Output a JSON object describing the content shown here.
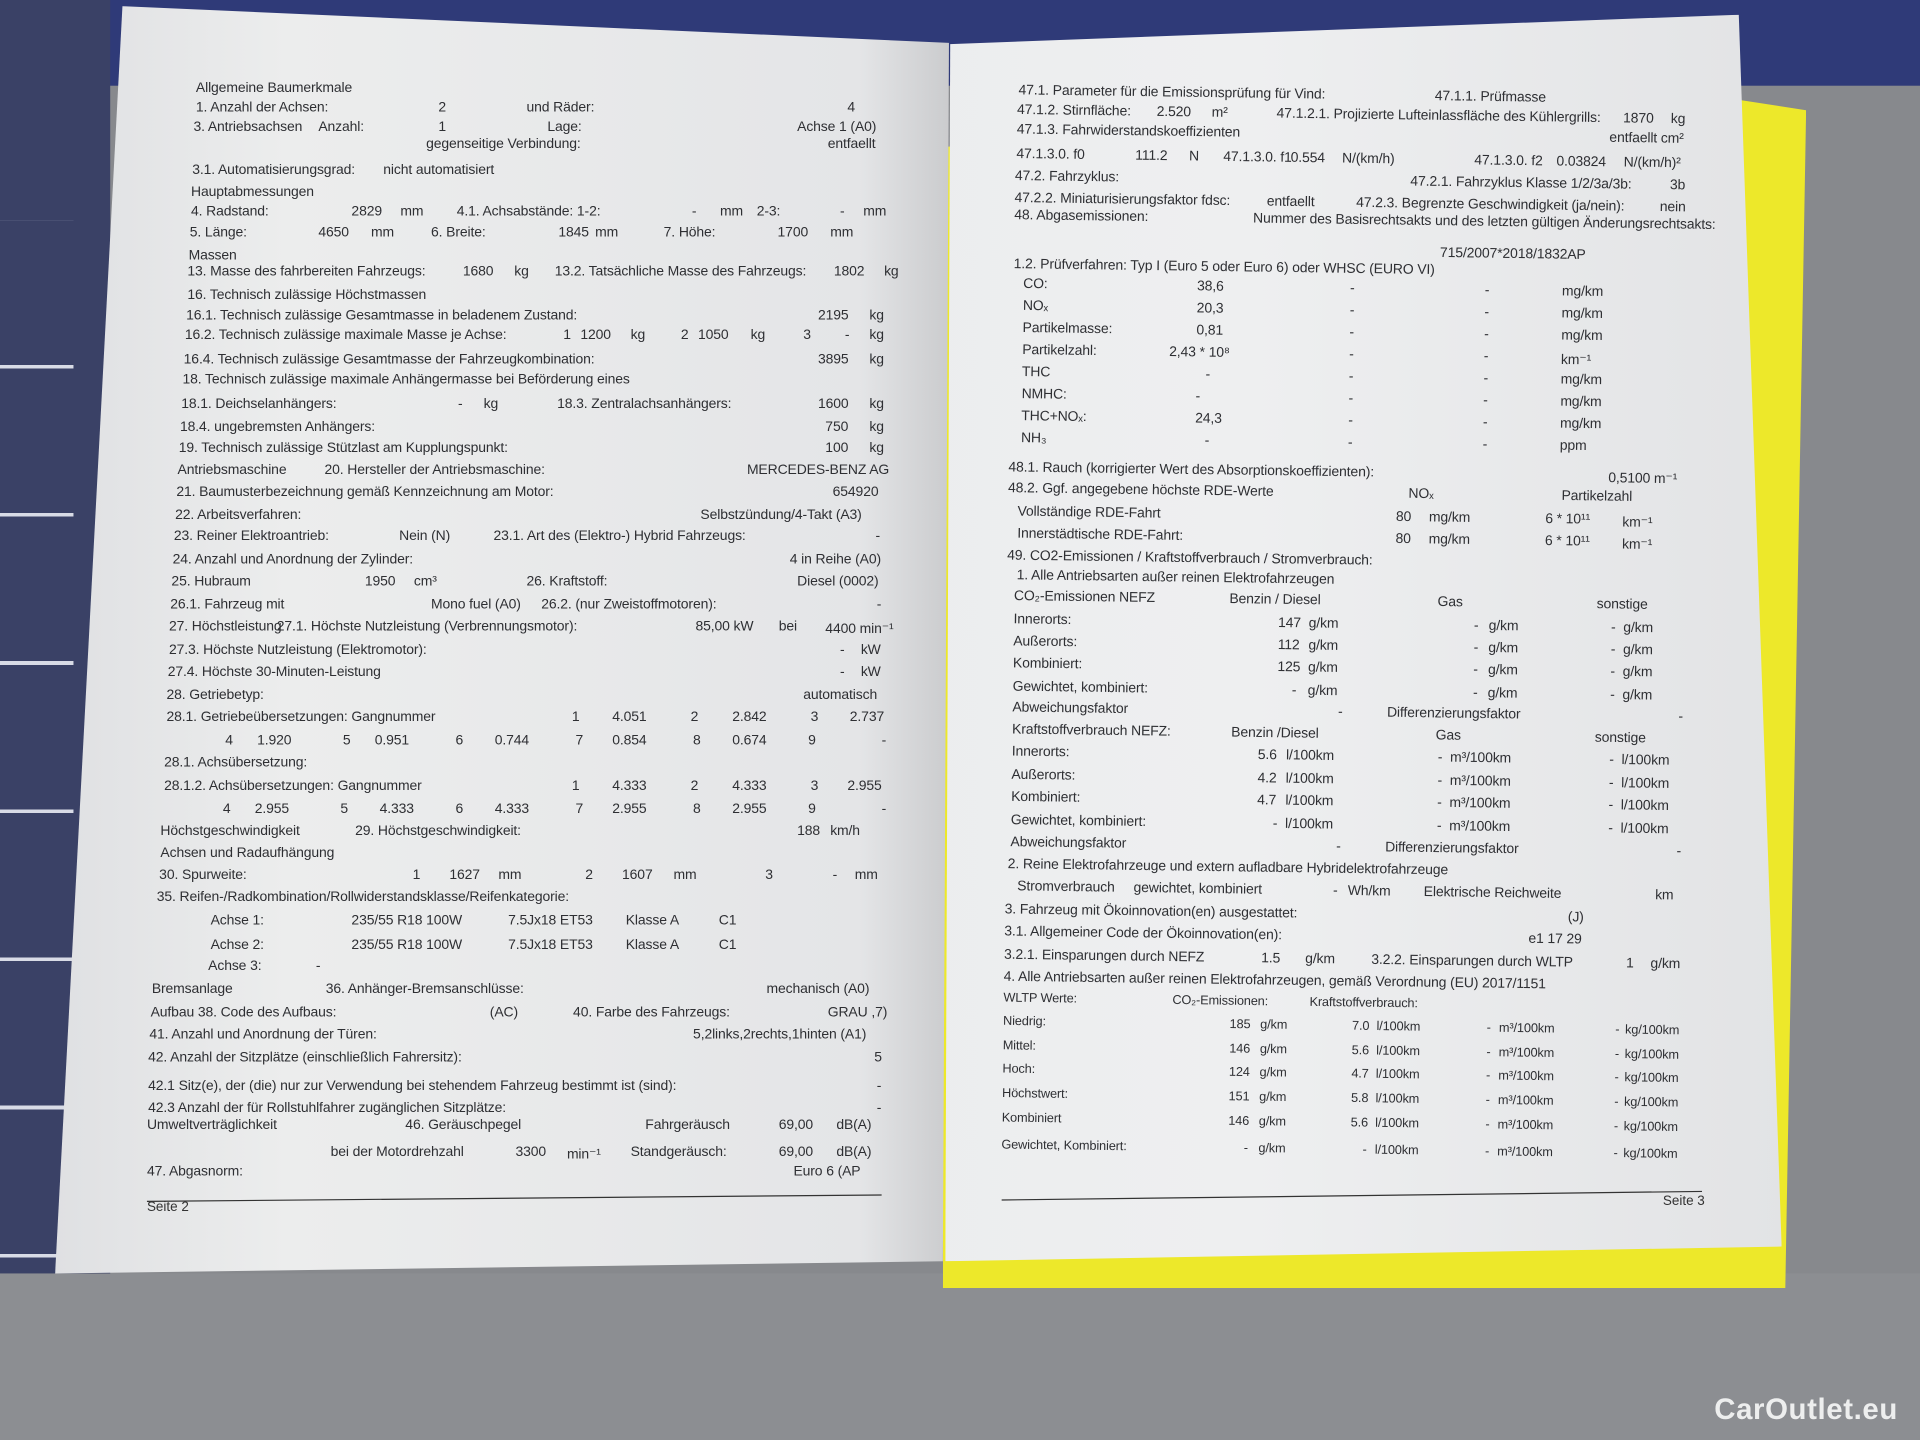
{
  "left_page": {
    "lines": [
      [
        "Allgemeine Baumerkmale"
      ],
      [
        "1. Anzahl der Achsen:",
        "2",
        "und Räder:",
        "4"
      ],
      [
        "3. Antriebsachsen",
        "Anzahl:",
        "1",
        "Lage:",
        "Achse 1 (A0)"
      ],
      [
        "gegenseitige Verbindung:",
        "entfaellt"
      ],
      [
        "3.1. Automatisierungsgrad:",
        "nicht automatisiert"
      ],
      [
        "Hauptabmessungen"
      ],
      [
        "4. Radstand:",
        "2829",
        "mm",
        "4.1. Achsabstände: 1-2:",
        "-",
        "mm",
        "2-3:",
        "-",
        "mm"
      ],
      [
        "5. Länge:",
        "4650",
        "mm",
        "6. Breite:",
        "1845",
        "mm",
        "7. Höhe:",
        "1700",
        "mm"
      ],
      [
        "Massen"
      ],
      [
        "13. Masse des fahrbereiten Fahrzeugs:",
        "1680",
        "kg",
        "13.2. Tatsächliche Masse des Fahrzeugs:",
        "1802",
        "kg"
      ],
      [
        "16. Technisch zulässige Höchstmassen"
      ],
      [
        "16.1. Technisch zulässige Gesamtmasse in beladenem Zustand:",
        "2195",
        "kg"
      ],
      [
        "16.2. Technisch zulässige maximale Masse je Achse:",
        "1",
        "1200",
        "kg",
        "2",
        "1050",
        "kg",
        "3",
        "-",
        "kg"
      ],
      [
        "16.4. Technisch zulässige Gesamtmasse der Fahrzeugkombination:",
        "3895",
        "kg"
      ],
      [
        "18. Technisch zulässige maximale Anhängermasse bei Beförderung eines"
      ],
      [
        "18.1. Deichselanhängers:",
        "-",
        "kg",
        "18.3. Zentralachsanhängers:",
        "1600",
        "kg"
      ],
      [
        "18.4. ungebremsten Anhängers:",
        "750",
        "kg"
      ],
      [
        "19. Technisch zulässige Stützlast am Kupplungspunkt:",
        "100",
        "kg"
      ],
      [
        "Antriebsmaschine",
        "20. Hersteller der Antriebsmaschine:",
        "MERCEDES-BENZ AG"
      ],
      [
        "21. Baumusterbezeichnung gemäß Kennzeichnung am Motor:",
        "654920"
      ],
      [
        "22. Arbeitsverfahren:",
        "Selbstzündung/4-Takt (A3)"
      ],
      [
        "23. Reiner Elektroantrieb:",
        "Nein (N)",
        "23.1. Art des (Elektro-) Hybrid Fahrzeugs:",
        "-"
      ],
      [
        "24. Anzahl und Anordnung der Zylinder:",
        "4 in Reihe (A0)"
      ],
      [
        "25. Hubraum",
        "1950",
        "cm³",
        "26. Kraftstoff:",
        "Diesel (0002)"
      ],
      [
        "26.1. Fahrzeug mit",
        "Mono fuel (A0)",
        "26.2. (nur Zweistoffmotoren):",
        "-"
      ],
      [
        "27. Höchstleistung",
        "27.1. Höchste Nutzleistung (Verbrennungsmotor):",
        "85,00 kW",
        "bei",
        "4400 min⁻¹"
      ],
      [
        "27.3. Höchste Nutzleistung (Elektromotor):",
        "-",
        "kW"
      ],
      [
        "27.4. Höchste 30-Minuten-Leistung",
        "-",
        "kW"
      ],
      [
        "28. Getriebetyp:",
        "automatisch"
      ],
      [
        "28.1. Getriebeübersetzungen: Gangnummer",
        "1",
        "4.051",
        "2",
        "2.842",
        "3",
        "2.737"
      ],
      [
        "4",
        "1.920",
        "5",
        "0.951",
        "6",
        "0.744",
        "7",
        "0.854",
        "8",
        "0.674",
        "9",
        "-"
      ],
      [
        "28.1. Achsübersetzung:"
      ],
      [
        "28.1.2. Achsübersetzungen: Gangnummer",
        "1",
        "4.333",
        "2",
        "4.333",
        "3",
        "2.955"
      ],
      [
        "4",
        "2.955",
        "5",
        "4.333",
        "6",
        "4.333",
        "7",
        "2.955",
        "8",
        "2.955",
        "9",
        "-"
      ],
      [
        "Höchstgeschwindigkeit",
        "29. Höchstgeschwindigkeit:",
        "188",
        "km/h"
      ],
      [
        "Achsen und Radaufhängung"
      ],
      [
        "30. Spurweite:",
        "1",
        "1627",
        "mm",
        "2",
        "1607",
        "mm",
        "3",
        "-",
        "mm"
      ],
      [
        "35. Reifen-/Radkombination/Rollwiderstandsklasse/Reifenkategorie:"
      ],
      [
        "Achse 1:",
        "235/55 R18 100W",
        "7.5Jx18 ET53",
        "Klasse A",
        "C1"
      ],
      [
        "Achse 2:",
        "235/55 R18 100W",
        "7.5Jx18 ET53",
        "Klasse A",
        "C1"
      ],
      [
        "Achse 3:",
        "-"
      ],
      [
        "Bremsanlage",
        "36. Anhänger-Bremsanschlüsse:",
        "mechanisch (A0)"
      ],
      [
        "Aufbau 38. Code des Aufbaus:",
        "(AC)",
        "40. Farbe des Fahrzeugs:",
        "GRAU ,7)"
      ],
      [
        "41. Anzahl und Anordnung der Türen:",
        "5,2links,2rechts,1hinten (A1)"
      ],
      [
        "42. Anzahl der Sitzplätze (einschließlich Fahrersitz):",
        "5"
      ],
      [
        "42.1 Sitz(e), der (die) nur zur Verwendung bei stehendem Fahrzeug bestimmt ist (sind):",
        "-"
      ],
      [
        "42.3 Anzahl der für Rollstuhlfahrer zugänglichen Sitzplätze:",
        "-"
      ],
      [
        "Umweltverträglichkeit",
        "46. Geräuschpegel",
        "Fahrgeräusch",
        "69,00",
        "dB(A)"
      ],
      [
        "bei der Motordrehzahl",
        "3300",
        "min⁻¹",
        "Standgeräusch:",
        "69,00",
        "dB(A)"
      ],
      [
        "47. Abgasnorm:",
        "Euro 6 (AP"
      ]
    ],
    "footer": "Seite 2"
  },
  "right_page": {
    "lines": [
      [
        "47.1. Parameter für die Emissionsprüfung für Vind:",
        "47.1.1. Prüfmasse"
      ],
      [
        "47.1.2. Stirnfläche:",
        "2.520",
        "m²",
        "47.1.2.1. Projizierte Lufteinlassfläche des Kühlergrills:",
        "1870",
        "kg"
      ],
      [
        "47.1.3. Fahrwiderstandskoeffizienten",
        "entfaellt",
        "cm²"
      ],
      [
        "47.1.3.0. f0",
        "111.2",
        "N",
        "47.1.3.0. f1",
        "0.554",
        "N/(km/h)",
        "47.1.3.0. f2",
        "0.03824",
        "N/(km/h)²"
      ],
      [
        "47.2. Fahrzyklus:",
        "47.2.1. Fahrzyklus Klasse 1/2/3a/3b:",
        "3b"
      ],
      [
        "47.2.2. Miniaturisierungsfaktor fdsc:",
        "entfaellt",
        "47.2.3. Begrenzte Geschwindigkeit (ja/nein):",
        "nein"
      ],
      [
        "48. Abgasemissionen:",
        "Nummer des Basisrechtsakts und des letzten gültigen Änderungsrechtsakts:"
      ],
      [
        "715/2007*2018/1832AP"
      ],
      [
        "1.2. Prüfverfahren: Typ I (Euro 5 oder Euro 6) oder WHSC (EURO VI)"
      ],
      [
        "CO:",
        "38,6",
        "-",
        "-",
        "mg/km"
      ],
      [
        "NOₓ",
        "20,3",
        "-",
        "-",
        "mg/km"
      ],
      [
        "Partikelmasse:",
        "0,81",
        "-",
        "-",
        "mg/km"
      ],
      [
        "Partikelzahl:",
        "2,43 * 10⁸",
        "-",
        "-",
        "km⁻¹"
      ],
      [
        "THC",
        "-",
        "-",
        "-",
        "mg/km"
      ],
      [
        "NMHC:",
        "-",
        "-",
        "-",
        "mg/km"
      ],
      [
        "THC+NOₓ:",
        "24,3",
        "-",
        "-",
        "mg/km"
      ],
      [
        "NH₃",
        "-",
        "-",
        "-",
        "ppm"
      ],
      [
        "48.1. Rauch (korrigierter Wert des Absorptionskoeffizienten):",
        "0,5100 m⁻¹"
      ],
      [
        "48.2. Ggf. angegebene höchste RDE-Werte",
        "NOₓ",
        "Partikelzahl"
      ],
      [
        "Vollständige RDE-Fahrt",
        "80",
        "mg/km",
        "6 * 10¹¹",
        "km⁻¹"
      ],
      [
        "Innerstädtische RDE-Fahrt:",
        "80",
        "mg/km",
        "6 * 10¹¹",
        "km⁻¹"
      ],
      [
        "49. CO2-Emissionen / Kraftstoffverbrauch / Stromverbrauch:"
      ],
      [
        "1. Alle Antriebsarten außer reinen Elektrofahrzeugen"
      ],
      [
        "CO₂-Emissionen NEFZ",
        "Benzin / Diesel",
        "Gas",
        "sonstige"
      ],
      [
        "Innerorts:",
        "147",
        "g/km",
        "-",
        "g/km",
        "-",
        "g/km"
      ],
      [
        "Außerorts:",
        "112",
        "g/km",
        "-",
        "g/km",
        "-",
        "g/km"
      ],
      [
        "Kombiniert:",
        "125",
        "g/km",
        "-",
        "g/km",
        "-",
        "g/km"
      ],
      [
        "Gewichtet, kombiniert:",
        "-",
        "g/km",
        "-",
        "g/km",
        "-",
        "g/km"
      ],
      [
        "Abweichungsfaktor",
        "-",
        "Differenzierungsfaktor",
        "-"
      ],
      [
        "Kraftstoffverbrauch NEFZ:",
        "Benzin /Diesel",
        "Gas",
        "sonstige"
      ],
      [
        "Innerorts:",
        "5.6",
        "l/100km",
        "-",
        "m³/100km",
        "-",
        "l/100km"
      ],
      [
        "Außerorts:",
        "4.2",
        "l/100km",
        "-",
        "m³/100km",
        "-",
        "l/100km"
      ],
      [
        "Kombiniert:",
        "4.7",
        "l/100km",
        "-",
        "m³/100km",
        "-",
        "l/100km"
      ],
      [
        "Gewichtet, kombiniert:",
        "-",
        "l/100km",
        "-",
        "m³/100km",
        "-",
        "l/100km"
      ],
      [
        "Abweichungsfaktor",
        "-",
        "Differenzierungsfaktor",
        "-"
      ],
      [
        "2. Reine Elektrofahrzeuge und extern aufladbare Hybridelektrofahrzeuge"
      ],
      [
        "Stromverbrauch",
        "gewichtet, kombiniert",
        "-",
        "Wh/km",
        "Elektrische Reichweite",
        "km"
      ],
      [
        "3. Fahrzeug mit Ökoinnovation(en) ausgestattet:",
        "(J)"
      ],
      [
        "3.1. Allgemeiner Code der Ökoinnovation(en):",
        "e1 17 29"
      ],
      [
        "3.2.1. Einsparungen durch NEFZ",
        "1.5",
        "g/km",
        "3.2.2. Einsparungen durch WLTP",
        "1",
        "g/km"
      ],
      [
        "4. Alle Antriebsarten außer reinen Elektrofahrzeugen, gemäß Verordnung (EU) 2017/1151"
      ],
      [
        "WLTP Werte:",
        "CO₂-Emissionen:",
        "Kraftstoffverbrauch:"
      ],
      [
        "Niedrig:",
        "185",
        "g/km",
        "7.0",
        "l/100km",
        "-",
        "m³/100km",
        "-",
        "kg/100km"
      ],
      [
        "Mittel:",
        "146",
        "g/km",
        "5.6",
        "l/100km",
        "-",
        "m³/100km",
        "-",
        "kg/100km"
      ],
      [
        "Hoch:",
        "124",
        "g/km",
        "4.7",
        "l/100km",
        "-",
        "m³/100km",
        "-",
        "kg/100km"
      ],
      [
        "Höchstwert:",
        "151",
        "g/km",
        "5.8",
        "l/100km",
        "-",
        "m³/100km",
        "-",
        "kg/100km"
      ],
      [
        "Kombiniert",
        "146",
        "g/km",
        "5.6",
        "l/100km",
        "-",
        "m³/100km",
        "-",
        "kg/100km"
      ],
      [
        "Gewichtet, Kombiniert:",
        "-",
        "g/km",
        "-",
        "l/100km",
        "-",
        "m³/100km",
        "-",
        "kg/100km"
      ]
    ],
    "footer": "Seite 3"
  },
  "watermark": "CarOutlet.eu",
  "colors": {
    "paper": "#e6e7e9",
    "folder": "#ede82a",
    "surface": "#2f3a78"
  }
}
